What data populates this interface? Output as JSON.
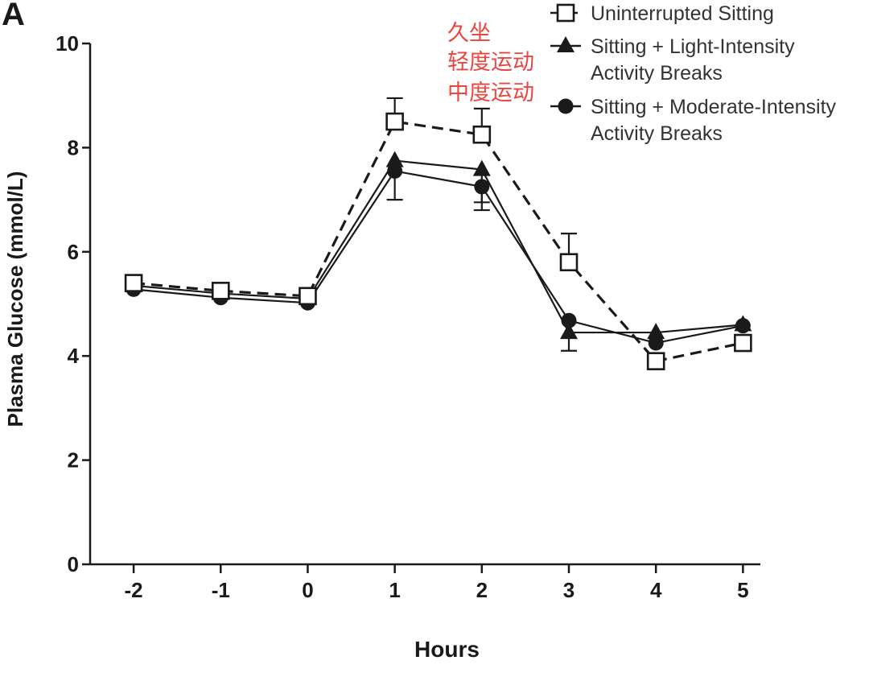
{
  "panel_label": "A",
  "annotations": [
    "久坐",
    "轻度运动",
    "中度运动"
  ],
  "colors": {
    "axis": "#1a1a1a",
    "series": "#1a1a1a",
    "annotation": "#e8463f"
  },
  "chart_data": {
    "type": "line",
    "title": "",
    "xlabel": "Hours",
    "ylabel": "Plasma Glucose (mmol/L)",
    "x": [
      -2,
      -1,
      0,
      1,
      2,
      3,
      4,
      5
    ],
    "xlim": [
      -2.5,
      5.2
    ],
    "ylim": [
      0,
      10
    ],
    "yticks": [
      0,
      2,
      4,
      6,
      8,
      10
    ],
    "xticks": [
      -2,
      -1,
      0,
      1,
      2,
      3,
      4,
      5
    ],
    "xtick_labels": [
      "-2",
      "-1",
      "0",
      "1",
      "2",
      "3",
      "4",
      "5"
    ],
    "ytick_labels": [
      "0",
      "2",
      "4",
      "6",
      "8",
      "10"
    ],
    "grid": false,
    "legend_position": "top-right",
    "series": [
      {
        "name": "Uninterrupted Sitting",
        "marker": "open-square",
        "line": "dashed",
        "values": [
          5.4,
          5.25,
          5.15,
          8.5,
          8.25,
          5.8,
          3.9,
          4.25
        ],
        "error_upper": [
          5.4,
          5.25,
          5.15,
          8.95,
          8.75,
          6.35,
          3.9,
          4.25
        ],
        "error_lower": [
          5.4,
          5.25,
          5.15,
          8.5,
          8.25,
          5.8,
          3.9,
          4.25
        ]
      },
      {
        "name": "Sitting + Light-Intensity\nActivity Breaks",
        "marker": "filled-triangle",
        "line": "solid",
        "values": [
          5.35,
          5.2,
          5.1,
          7.75,
          7.58,
          4.45,
          4.45,
          4.6
        ],
        "error_upper": [
          5.35,
          5.2,
          5.1,
          7.75,
          7.58,
          4.45,
          4.45,
          4.6
        ],
        "error_lower": [
          5.35,
          5.2,
          5.1,
          7.0,
          6.95,
          4.1,
          4.45,
          4.6
        ]
      },
      {
        "name": "Sitting + Moderate-Intensity\nActivity Breaks",
        "marker": "filled-circle",
        "line": "solid",
        "values": [
          5.28,
          5.12,
          5.02,
          7.55,
          7.25,
          4.68,
          4.25,
          4.58
        ],
        "error_upper": [
          5.28,
          5.12,
          5.02,
          7.55,
          7.25,
          4.68,
          4.25,
          4.58
        ],
        "error_lower": [
          5.28,
          5.12,
          5.02,
          7.55,
          6.8,
          4.68,
          4.25,
          4.58
        ]
      }
    ]
  }
}
